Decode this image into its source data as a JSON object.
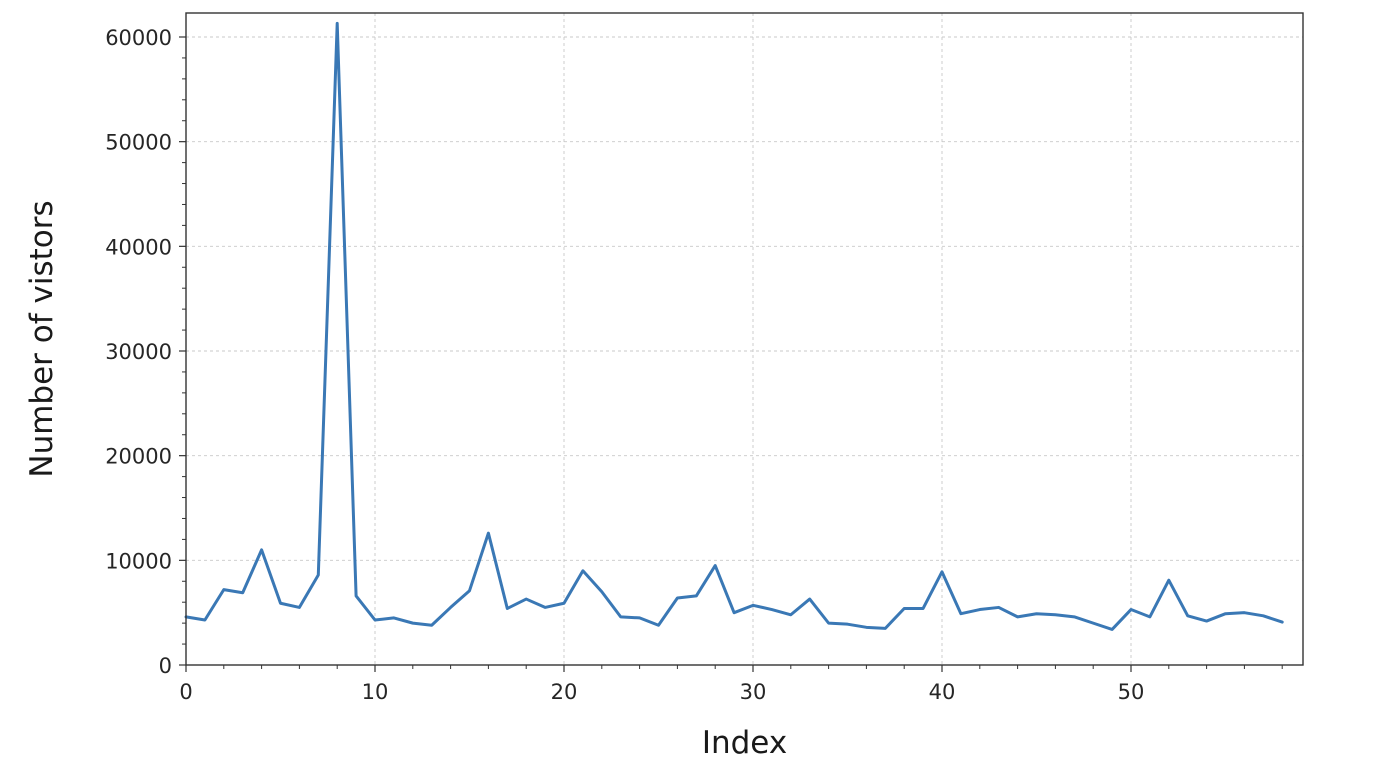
{
  "chart_data": {
    "type": "line",
    "title": "",
    "xlabel": "Index",
    "ylabel": "Number of vistors",
    "xlim": [
      0,
      59
    ],
    "ylim": [
      0,
      60000
    ],
    "x_ticks": [
      0,
      10,
      20,
      30,
      40,
      50
    ],
    "y_ticks": [
      0,
      10000,
      20000,
      30000,
      40000,
      50000,
      60000
    ],
    "x_tick_labels": [
      "0",
      "10",
      "20",
      "30",
      "40",
      "50"
    ],
    "y_tick_labels": [
      "0",
      "10000",
      "20000",
      "30000",
      "40000",
      "50000",
      "60000"
    ],
    "grid": true,
    "series": [
      {
        "color": "#3a78b5",
        "x": [
          0,
          1,
          2,
          3,
          4,
          5,
          6,
          7,
          8,
          9,
          10,
          11,
          12,
          13,
          14,
          15,
          16,
          17,
          18,
          19,
          20,
          21,
          22,
          23,
          24,
          25,
          26,
          27,
          28,
          29,
          30,
          31,
          32,
          33,
          34,
          35,
          36,
          37,
          38,
          39,
          40,
          41,
          42,
          43,
          44,
          45,
          46,
          47,
          48,
          49,
          50,
          51,
          52,
          53,
          54,
          55,
          56,
          57,
          58
        ],
        "values": [
          4600,
          4300,
          7200,
          6900,
          11000,
          5900,
          5500,
          8600,
          61300,
          6600,
          4300,
          4500,
          4000,
          3800,
          5500,
          7100,
          12600,
          5400,
          6300,
          5500,
          5900,
          9000,
          7000,
          4600,
          4500,
          3800,
          6400,
          6600,
          9500,
          5000,
          5700,
          5300,
          4800,
          6300,
          4000,
          3900,
          3600,
          3500,
          5400,
          5400,
          8900,
          4900,
          5300,
          5500,
          4600,
          4900,
          4800,
          4600,
          4000,
          3400,
          5300,
          4600,
          8100,
          4700,
          4200,
          4900,
          5000,
          4700,
          4100
        ]
      }
    ]
  }
}
